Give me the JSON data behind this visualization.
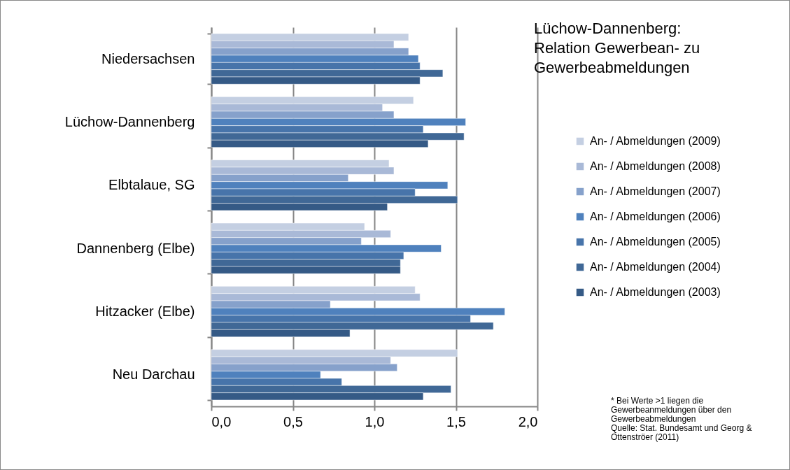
{
  "chart_data": {
    "type": "bar",
    "orientation": "horizontal",
    "title": [
      "Lüchow-Dannenberg:",
      "Relation Gewerbean- zu",
      "Gewerbeabmeldungen"
    ],
    "categories": [
      "Niedersachsen",
      "Lüchow-Dannenberg",
      "Elbtalaue, SG",
      "Dannenberg (Elbe)",
      "Hitzacker (Elbe)",
      "Neu Darchau"
    ],
    "series": [
      {
        "name": "An- / Abmeldungen  (2009)",
        "color": "#c4cfe2",
        "values": [
          1.21,
          1.24,
          1.09,
          0.94,
          1.25,
          1.51
        ]
      },
      {
        "name": "An- / Abmeldungen  (2008)",
        "color": "#a9b9d7",
        "values": [
          1.12,
          1.05,
          1.12,
          1.1,
          1.28,
          1.1
        ]
      },
      {
        "name": "An- / Abmeldungen  (2007)",
        "color": "#86a1cb",
        "values": [
          1.21,
          1.12,
          0.84,
          0.92,
          0.73,
          1.14
        ]
      },
      {
        "name": "An- / Abmeldungen  (2006)",
        "color": "#4f81bd",
        "values": [
          1.27,
          1.56,
          1.45,
          1.41,
          1.8,
          0.67
        ]
      },
      {
        "name": "An- / Abmeldungen  (2005)",
        "color": "#4774aa",
        "values": [
          1.28,
          1.3,
          1.25,
          1.18,
          1.59,
          0.8
        ]
      },
      {
        "name": "An- / Abmeldungen  (2004)",
        "color": "#406896",
        "values": [
          1.42,
          1.55,
          1.51,
          1.16,
          1.73,
          1.47
        ]
      },
      {
        "name": "An- / Abmeldungen  (2003)",
        "color": "#355a86",
        "values": [
          1.28,
          1.33,
          1.08,
          1.16,
          0.85,
          1.3
        ]
      }
    ],
    "xlim": [
      0,
      2
    ],
    "xticks": [
      {
        "value": 0,
        "label": "0,0"
      },
      {
        "value": 0.5,
        "label": "0,5"
      },
      {
        "value": 1,
        "label": "1,0"
      },
      {
        "value": 1.5,
        "label": "1,5"
      },
      {
        "value": 2,
        "label": "2,0"
      }
    ],
    "grid": "x",
    "legend": "right",
    "annotations": [
      "* Bei Werte >1 liegen die Gewerbeanmeldungen über den Gewerbeabmeldungen",
      "Quelle: Stat. Bundesamt und Georg & Ottenströer (2011)"
    ]
  }
}
